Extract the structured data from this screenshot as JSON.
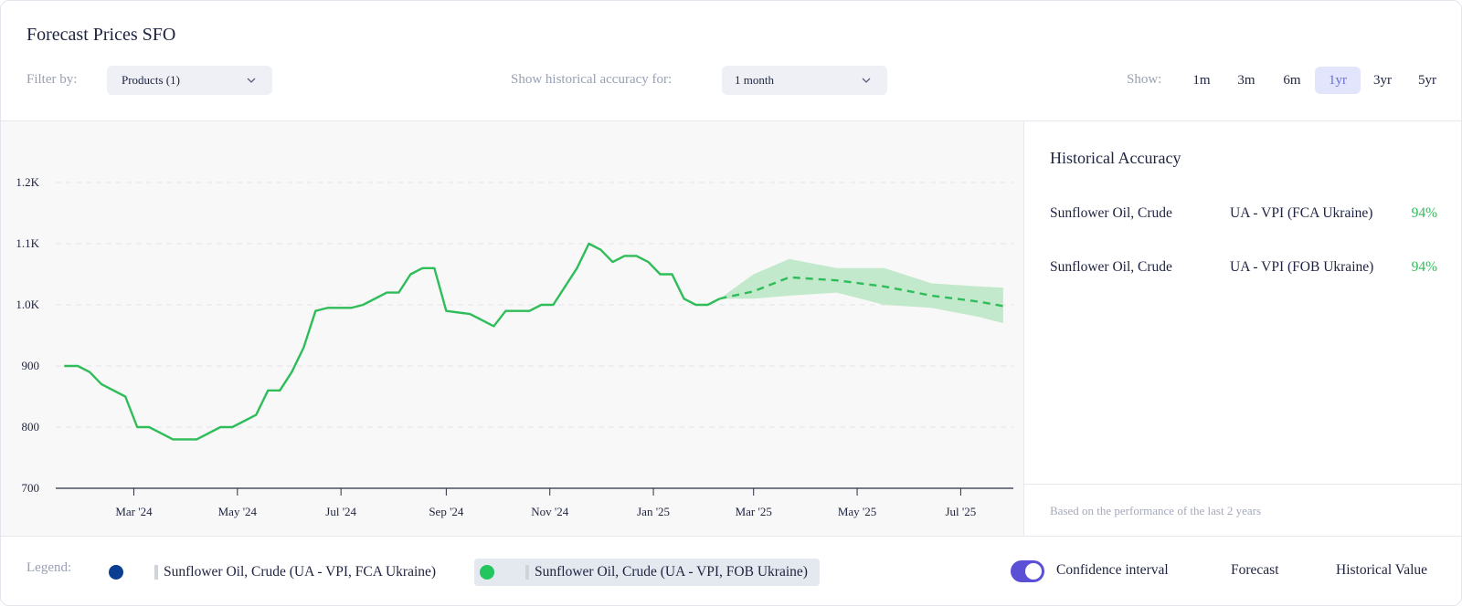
{
  "header": {
    "title": "Forecast Prices SFO",
    "filter_label": "Filter by:",
    "filter_value": "Products (1)",
    "accuracy_label": "Show historical accuracy for:",
    "accuracy_value": "1 month",
    "show_label": "Show:",
    "ranges": [
      "1m",
      "3m",
      "6m",
      "1yr",
      "3yr",
      "5yr"
    ],
    "active_range": "1yr"
  },
  "panel": {
    "title": "Historical Accuracy",
    "rows": [
      {
        "product": "Sunflower Oil, Crude",
        "source": "UA - VPI (FCA Ukraine)",
        "accuracy": "94%"
      },
      {
        "product": "Sunflower Oil, Crude",
        "source": "UA - VPI (FOB Ukraine)",
        "accuracy": "94%"
      }
    ],
    "note": "Based on the performance of the last 2 years"
  },
  "legend": {
    "label": "Legend:",
    "series": [
      {
        "name": "Sunflower Oil, Crude (UA - VPI, FCA Ukraine)",
        "color": "#0b3d91",
        "selected": false
      },
      {
        "name": "Sunflower Oil, Crude (UA - VPI, FOB Ukraine)",
        "color": "#22c55e",
        "selected": true
      }
    ],
    "confidence_label": "Confidence interval",
    "confidence_on": true,
    "forecast_label": "Forecast",
    "historical_label": "Historical Value"
  },
  "colors": {
    "line": "#2ebd59",
    "band": "#bfe8c8",
    "accent": "#5b4fd6"
  },
  "chart_data": {
    "type": "line",
    "y_ticks": [
      "700",
      "800",
      "900",
      "1.0K",
      "1.1K",
      "1.2K"
    ],
    "ylim": [
      700,
      1300
    ],
    "x_ticks": [
      "Mar '24",
      "May '24",
      "Jul '24",
      "Sep '24",
      "Nov '24",
      "Jan '25",
      "Mar '25",
      "May '25",
      "Jul '25"
    ],
    "x_tick_dates": [
      "2024-03-01",
      "2024-05-01",
      "2024-07-01",
      "2024-09-01",
      "2024-11-01",
      "2025-01-01",
      "2025-03-01",
      "2025-05-01",
      "2025-07-01"
    ],
    "xlim": [
      "2024-01-15",
      "2025-08-01"
    ],
    "grid": true,
    "series": [
      {
        "name": "Sunflower Oil, Crude (UA - VPI, FOB Ukraine)",
        "kind": "historical",
        "x": [
          "2024-01-20",
          "2024-01-28",
          "2024-02-04",
          "2024-02-11",
          "2024-02-25",
          "2024-03-03",
          "2024-03-10",
          "2024-03-17",
          "2024-03-24",
          "2024-04-07",
          "2024-04-21",
          "2024-04-28",
          "2024-05-12",
          "2024-05-19",
          "2024-05-26",
          "2024-06-02",
          "2024-06-09",
          "2024-06-16",
          "2024-06-23",
          "2024-07-07",
          "2024-07-14",
          "2024-07-28",
          "2024-08-04",
          "2024-08-11",
          "2024-08-18",
          "2024-08-25",
          "2024-09-01",
          "2024-09-15",
          "2024-09-29",
          "2024-10-06",
          "2024-10-20",
          "2024-10-27",
          "2024-11-03",
          "2024-11-17",
          "2024-11-24",
          "2024-12-01",
          "2024-12-08",
          "2024-12-15",
          "2024-12-22",
          "2024-12-29",
          "2025-01-05",
          "2025-01-12",
          "2025-01-19",
          "2025-01-26",
          "2025-02-02",
          "2025-02-09"
        ],
        "y": [
          900,
          900,
          890,
          870,
          850,
          800,
          800,
          790,
          780,
          780,
          800,
          800,
          820,
          860,
          860,
          890,
          930,
          990,
          995,
          995,
          1000,
          1020,
          1020,
          1050,
          1060,
          1060,
          990,
          985,
          965,
          990,
          990,
          1000,
          1000,
          1060,
          1100,
          1090,
          1070,
          1080,
          1080,
          1070,
          1050,
          1050,
          1010,
          1000,
          1000,
          1010
        ]
      },
      {
        "name": "Sunflower Oil, Crude (UA - VPI, FOB Ukraine)",
        "kind": "forecast",
        "x": [
          "2025-02-09",
          "2025-03-01",
          "2025-03-22",
          "2025-04-19",
          "2025-05-17",
          "2025-06-14",
          "2025-07-12",
          "2025-07-26"
        ],
        "y": [
          1010,
          1022,
          1045,
          1040,
          1030,
          1015,
          1005,
          998
        ],
        "lower": [
          1010,
          1010,
          1015,
          1020,
          1000,
          995,
          980,
          970
        ],
        "upper": [
          1010,
          1050,
          1075,
          1060,
          1060,
          1035,
          1030,
          1028
        ]
      }
    ]
  }
}
